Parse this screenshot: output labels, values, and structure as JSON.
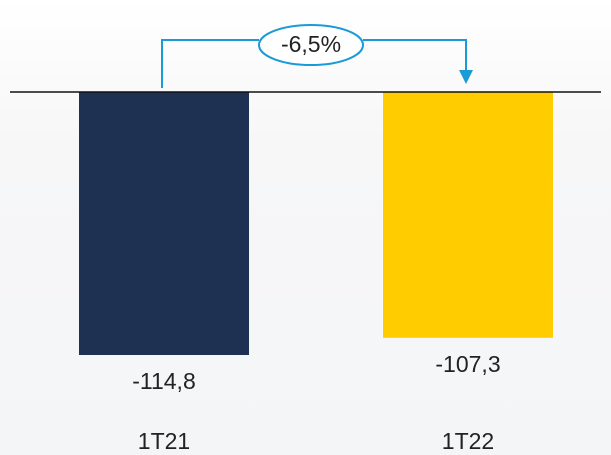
{
  "chart_data": {
    "type": "bar",
    "categories": [
      "1T21",
      "1T22"
    ],
    "values": [
      -114.8,
      -107.3
    ],
    "value_labels": [
      "-114,8",
      "-107,3"
    ],
    "colors": [
      "#1e3152",
      "#ffcc00"
    ],
    "annotation": "-6,5%"
  }
}
